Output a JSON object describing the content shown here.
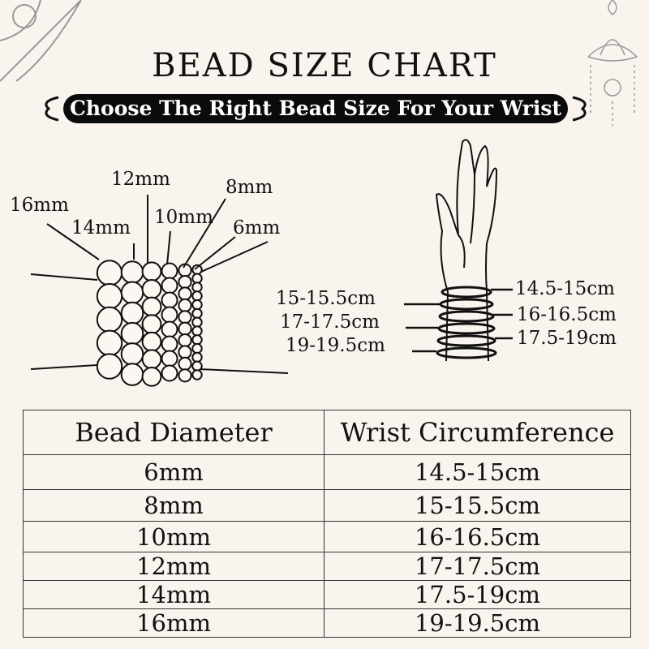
{
  "title": "BEAD SIZE CHART",
  "subtitle": "Choose The Right Bead Size For Your Wrist",
  "bead_labels": [
    "16mm",
    "14mm",
    "12mm",
    "10mm",
    "8mm",
    "6mm"
  ],
  "wrist_labels_left": [
    "15-15.5cm",
    "17-17.5cm",
    "19-19.5cm"
  ],
  "wrist_labels_right": [
    "14.5-15cm",
    "16-16.5cm",
    "17.5-19cm"
  ],
  "table": {
    "headers": [
      "Bead Diameter",
      "Wrist Circumference"
    ],
    "rows": [
      [
        "6mm",
        "14.5-15cm"
      ],
      [
        "8mm",
        "15-15.5cm"
      ],
      [
        "10mm",
        "16-16.5cm"
      ],
      [
        "12mm",
        "17-17.5cm"
      ],
      [
        "14mm",
        "17.5-19cm"
      ],
      [
        "16mm",
        "19-19.5cm"
      ]
    ]
  },
  "colors": {
    "background": "#f9f5ee",
    "banner": "#0b0b0b",
    "text": "#111111"
  }
}
